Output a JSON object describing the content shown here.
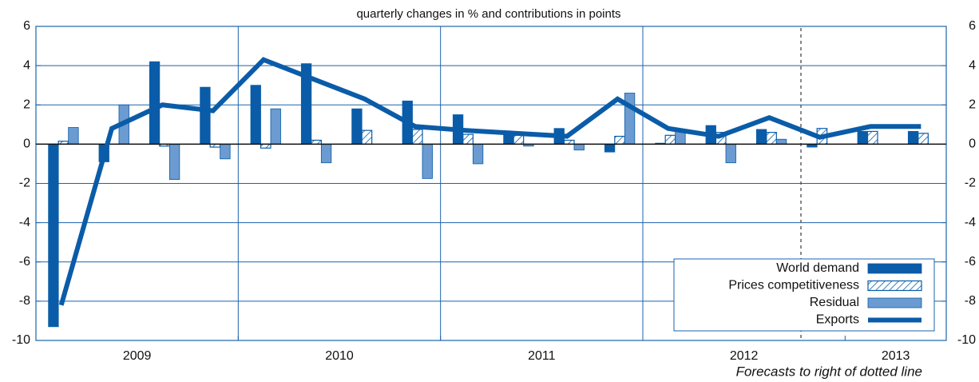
{
  "chart_data": {
    "type": "bar",
    "title": "quarterly changes in % and contributions in points",
    "categories": [
      null,
      null,
      null,
      null,
      null,
      null,
      null,
      null,
      null,
      null,
      null,
      null,
      null,
      null,
      null,
      null,
      null,
      null
    ],
    "x_group_labels": [
      "2009",
      "2010",
      "2011",
      "2012",
      "2013"
    ],
    "forecast_start": 15,
    "note": "Forecasts to right of dotted line",
    "series": [
      {
        "name": "World demand",
        "color": "#0a5ca8",
        "values": [
          -9.3,
          -0.9,
          4.2,
          2.9,
          3.0,
          4.1,
          1.8,
          2.2,
          1.5,
          0.5,
          0.8,
          -0.4,
          0.05,
          0.95,
          0.75,
          -0.15,
          0.65,
          0.65
        ]
      },
      {
        "name": "Prices competitiveness",
        "color": "#0a5ca8",
        "pattern": "hatch",
        "values": [
          0.15,
          0,
          -0.1,
          -0.15,
          -0.2,
          0.2,
          0.7,
          0.75,
          0.5,
          0.45,
          0.2,
          0.4,
          0.45,
          0.6,
          0.6,
          0.8,
          0.65,
          0.55
        ]
      },
      {
        "name": "Residual",
        "color": "#6b9bd0",
        "values": [
          0.85,
          2.0,
          -1.8,
          -0.75,
          1.8,
          -0.95,
          0,
          -1.75,
          -1.0,
          -0.1,
          -0.3,
          2.6,
          0.7,
          -0.95,
          0.25,
          0,
          0,
          0
        ]
      },
      {
        "name": "Exports",
        "color": "#0a5ca8",
        "type": "line",
        "values": [
          -8.2,
          0.8,
          2.0,
          1.7,
          4.3,
          3.3,
          2.3,
          0.9,
          0.7,
          0.55,
          0.4,
          2.3,
          0.8,
          0.4,
          1.35,
          0.35,
          0.9,
          0.9
        ]
      }
    ],
    "ylim": [
      -10,
      6
    ],
    "yticks": [
      -10,
      -8,
      -6,
      -4,
      -2,
      0,
      2,
      4,
      6
    ],
    "y2lim": [
      -10,
      6
    ],
    "y2ticks": [
      -10,
      -8,
      -6,
      -4,
      -2,
      0,
      2,
      4,
      6
    ],
    "grid": true,
    "legend": "lower right"
  }
}
